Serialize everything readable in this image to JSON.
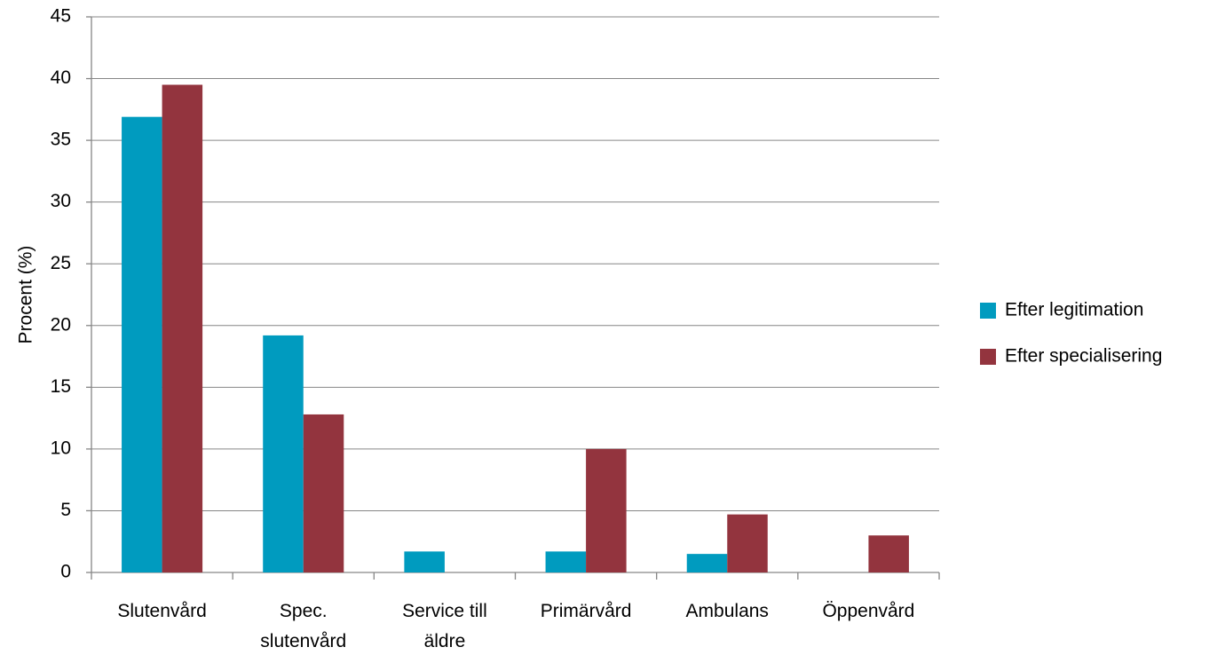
{
  "chart_data": {
    "type": "bar",
    "y_label": "Procent (%)",
    "categories": [
      "Slutenvård",
      "Spec.\nslutenvård",
      "Service till\näldre",
      "Primärvård",
      "Ambulans",
      "Öppenvård"
    ],
    "series": [
      {
        "name": "Efter legitimation",
        "color": "#009bbf",
        "values": [
          36.9,
          19.2,
          1.7,
          1.7,
          1.5,
          0
        ]
      },
      {
        "name": "Efter specialisering",
        "color": "#93343e",
        "values": [
          39.5,
          12.8,
          0,
          10.0,
          4.7,
          3.0
        ]
      }
    ],
    "ylim": [
      0,
      45
    ],
    "yticks": [
      0,
      5,
      10,
      15,
      20,
      25,
      30,
      35,
      40,
      45
    ],
    "grid": true,
    "legend": "right"
  }
}
